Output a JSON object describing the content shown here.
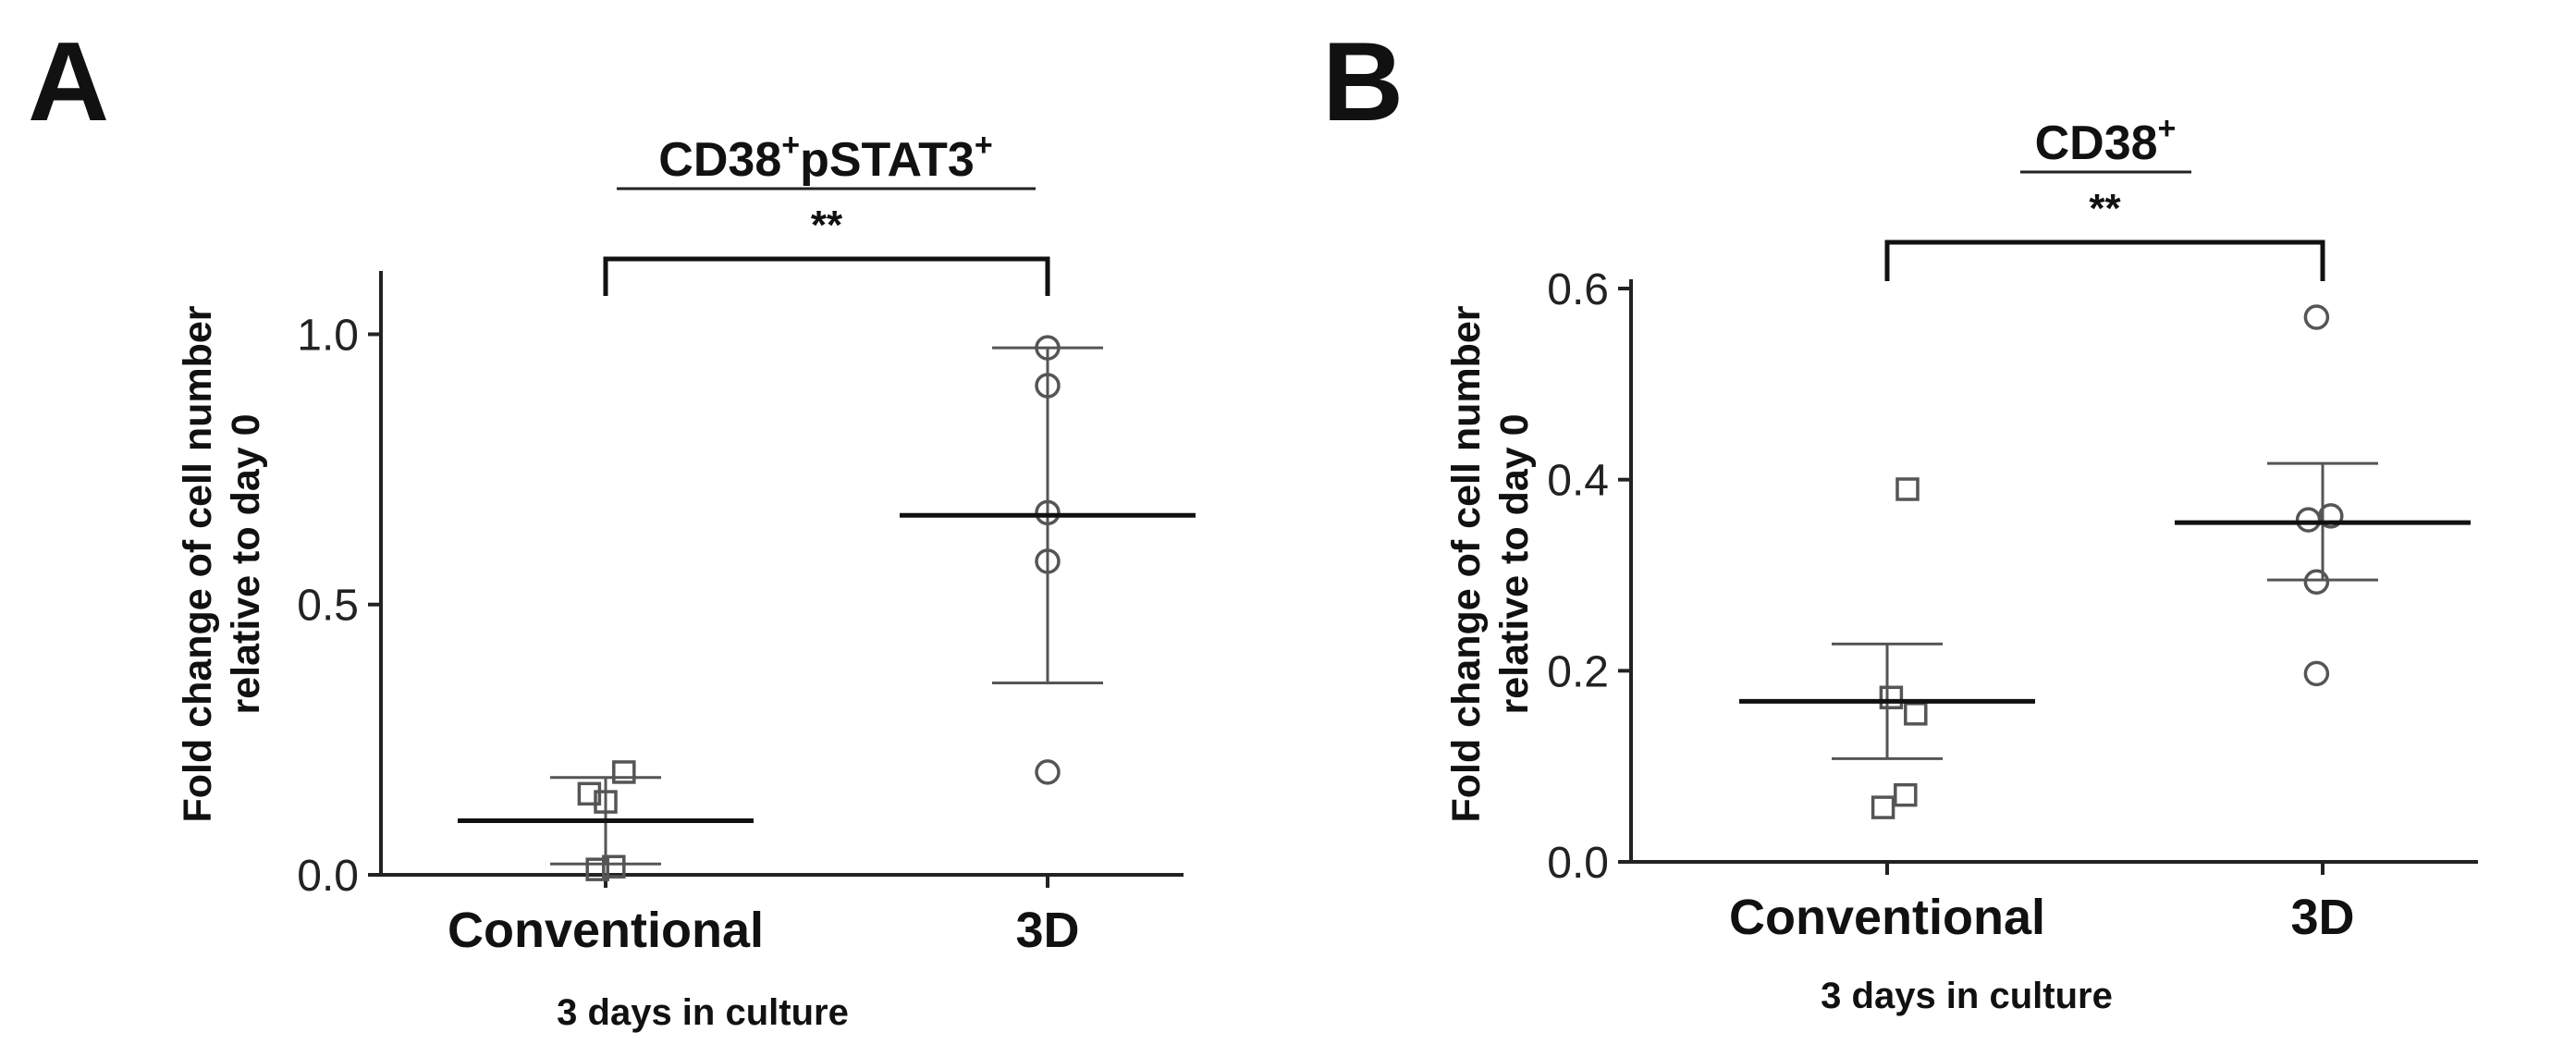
{
  "chart_data": [
    {
      "panel": "A",
      "type": "scatter",
      "title": "CD38",
      "title_sup1": "+",
      "title_mid": "pSTAT3",
      "title_sup2": "+",
      "significance": "**",
      "xlabel": "3 days in culture",
      "ylabel_line1": "Fold change of cell number",
      "ylabel_line2": "relative to day 0",
      "ylim": [
        0,
        1.1
      ],
      "yticks": [
        {
          "value": 0,
          "label": "0.0"
        },
        {
          "value": 0.5,
          "label": "0.5"
        },
        {
          "value": 1,
          "label": "1.0"
        }
      ],
      "categories": [
        "Conventional",
        "3D"
      ],
      "groups": [
        {
          "category": "Conventional",
          "marker": "square",
          "points": [
            {
              "x": -0.08,
              "y": 0.15
            },
            {
              "x": 0.0,
              "y": 0.135
            },
            {
              "x": 0.09,
              "y": 0.19
            },
            {
              "x": -0.04,
              "y": 0.01
            },
            {
              "x": 0.04,
              "y": 0.015
            }
          ],
          "mean": 0.1,
          "err_low": 0.02,
          "err_high": 0.18
        },
        {
          "category": "3D",
          "marker": "circle",
          "points": [
            {
              "x": 0.0,
              "y": 0.975
            },
            {
              "x": 0.0,
              "y": 0.905
            },
            {
              "x": 0.0,
              "y": 0.67
            },
            {
              "x": 0.0,
              "y": 0.58
            },
            {
              "x": 0.0,
              "y": 0.19
            }
          ],
          "mean": 0.665,
          "err_low": 0.355,
          "err_high": 0.975
        }
      ]
    },
    {
      "panel": "B",
      "type": "scatter",
      "title": "CD38",
      "title_sup1": "+",
      "title_mid": "",
      "title_sup2": "",
      "significance": "**",
      "xlabel": "3 days in culture",
      "ylabel_line1": "Fold change of cell number",
      "ylabel_line2": "relative to day 0",
      "ylim": [
        0,
        0.6
      ],
      "yticks": [
        {
          "value": 0,
          "label": "0.0"
        },
        {
          "value": 0.2,
          "label": "0.2"
        },
        {
          "value": 0.4,
          "label": "0.4"
        },
        {
          "value": 0.6,
          "label": "0.6"
        }
      ],
      "categories": [
        "Conventional",
        "3D"
      ],
      "groups": [
        {
          "category": "Conventional",
          "marker": "square",
          "points": [
            {
              "x": 0.1,
              "y": 0.39
            },
            {
              "x": 0.02,
              "y": 0.172
            },
            {
              "x": 0.14,
              "y": 0.155
            },
            {
              "x": -0.02,
              "y": 0.057
            },
            {
              "x": 0.09,
              "y": 0.07
            }
          ],
          "mean": 0.168,
          "err_low": 0.108,
          "err_high": 0.228
        },
        {
          "category": "3D",
          "marker": "circle",
          "points": [
            {
              "x": -0.03,
              "y": 0.57
            },
            {
              "x": -0.07,
              "y": 0.358
            },
            {
              "x": 0.04,
              "y": 0.362
            },
            {
              "x": -0.03,
              "y": 0.293
            },
            {
              "x": -0.03,
              "y": 0.197
            }
          ],
          "mean": 0.355,
          "err_low": 0.295,
          "err_high": 0.417
        }
      ]
    }
  ]
}
